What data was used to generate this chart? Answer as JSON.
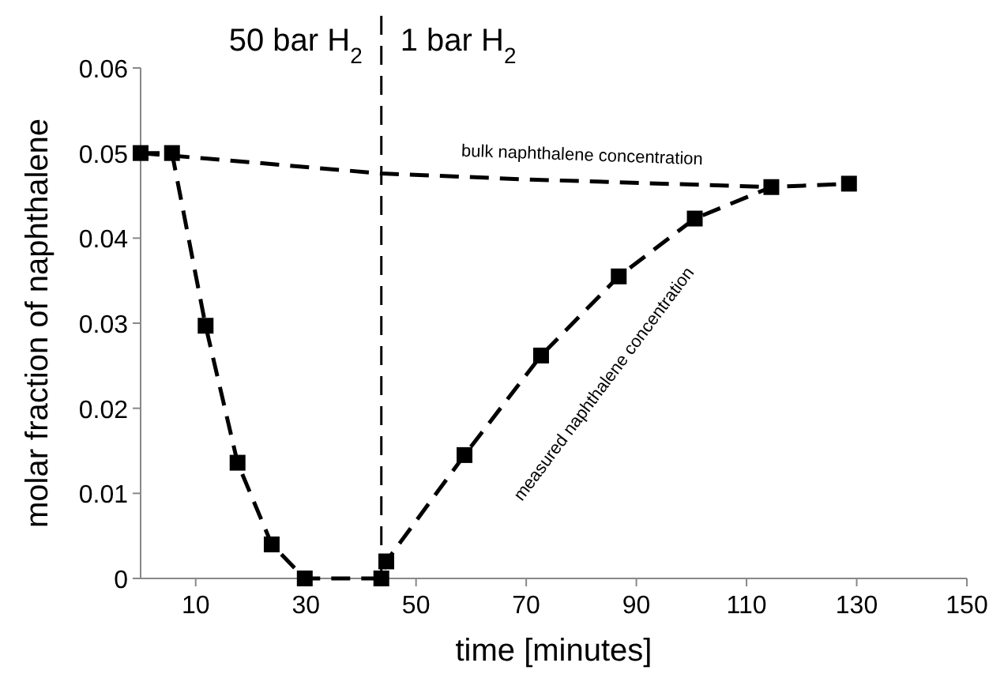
{
  "chart_data": {
    "type": "line",
    "xlabel": "time [minutes]",
    "ylabel": "molar fraction of naphthalene",
    "xlim": [
      0,
      150
    ],
    "xticks": [
      10,
      30,
      50,
      70,
      90,
      110,
      130,
      150
    ],
    "ylim": [
      0,
      0.06
    ],
    "yticks": [
      0,
      0.01,
      0.02,
      0.03,
      0.04,
      0.05,
      0.06
    ],
    "grid": false,
    "line_style": "dashed",
    "series": [
      {
        "color": "#000000",
        "marker": "square",
        "x": [
          0,
          5.7,
          11.8,
          17.6,
          23.8,
          29.8,
          43.7,
          44.6,
          58.8,
          72.7,
          86.8,
          100.6,
          114.5,
          128.6
        ],
        "values": [
          0.05,
          0.05,
          0.0297,
          0.0136,
          0.004,
          0,
          0,
          0.002,
          0.0145,
          0.0262,
          0.0355,
          0.0423,
          0.046,
          0.0464
        ]
      },
      {
        "color": "#000000",
        "marker": "none",
        "x": [
          0,
          22,
          43.7,
          70,
          114.5
        ],
        "values": [
          0.05,
          0.0488,
          0.0476,
          0.0469,
          0.046
        ]
      }
    ],
    "ref_lines": [
      {
        "axis": "x",
        "value": 43.7,
        "label": null,
        "color": "#000000",
        "line_style": "dashed"
      }
    ],
    "annotations": [
      "50 bar H$_{2}$",
      "1 bar H$_{2}$",
      {
        "text": "bulk naphthalene concentration",
        "x": 80,
        "y": 0.0469
      },
      "measured naphthalene concentration"
    ]
  }
}
